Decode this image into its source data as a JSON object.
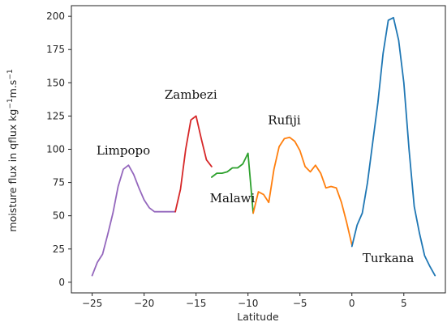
{
  "chart_data": {
    "type": "line",
    "xlabel": "Latitude",
    "ylabel_parts": [
      "moisture flux in  qflux kg",
      "−1",
      "m.s",
      "−1"
    ],
    "xlim": [
      -27,
      9
    ],
    "ylim": [
      -8,
      208
    ],
    "x_ticks": [
      -25,
      -20,
      -15,
      -10,
      -5,
      0,
      5
    ],
    "y_ticks": [
      0,
      25,
      50,
      75,
      100,
      125,
      150,
      175,
      200
    ],
    "grid": false,
    "legend": "none",
    "series": [
      {
        "label": "Limpopo",
        "color": "#9467bd",
        "x": [
          -25.0,
          -24.5,
          -24.0,
          -23.5,
          -23.0,
          -22.5,
          -22.0,
          -21.5,
          -21.0,
          -20.5,
          -20.0,
          -19.5,
          -19.0,
          -18.5,
          -18.0,
          -17.5,
          -17.0
        ],
        "y": [
          5,
          15,
          21,
          36,
          52,
          72,
          85,
          88,
          81,
          71,
          62,
          56,
          53,
          53,
          53,
          53,
          53
        ]
      },
      {
        "label": "Zambezi",
        "color": "#d62728",
        "x": [
          -17.0,
          -16.5,
          -16.0,
          -15.5,
          -15.0,
          -14.5,
          -14.0,
          -13.5
        ],
        "y": [
          53,
          70,
          100,
          122,
          125,
          108,
          92,
          87
        ]
      },
      {
        "label": "Malawi",
        "color": "#2ca02c",
        "x": [
          -13.5,
          -13.0,
          -12.5,
          -12.0,
          -11.5,
          -11.0,
          -10.5,
          -10.0,
          -9.5
        ],
        "y": [
          79,
          82,
          82,
          83,
          86,
          86,
          89,
          97,
          52
        ]
      },
      {
        "label": "Rufiji",
        "color": "#ff7f0e",
        "x": [
          -9.5,
          -9.0,
          -8.5,
          -8.0,
          -7.5,
          -7.0,
          -6.5,
          -6.0,
          -5.5,
          -5.0,
          -4.5,
          -4.0,
          -3.5,
          -3.0,
          -2.5,
          -2.0,
          -1.5,
          -1.0,
          -0.5,
          0.0
        ],
        "y": [
          52,
          68,
          66,
          60,
          85,
          102,
          108,
          109,
          106,
          99,
          87,
          83,
          88,
          82,
          71,
          72,
          71,
          60,
          45,
          28
        ]
      },
      {
        "label": "Turkana",
        "color": "#1f77b4",
        "x": [
          0.0,
          0.5,
          1.0,
          1.5,
          2.0,
          2.5,
          3.0,
          3.5,
          4.0,
          4.5,
          5.0,
          5.5,
          6.0,
          6.5,
          7.0,
          7.5,
          8.0
        ],
        "y": [
          27,
          43,
          52,
          75,
          105,
          135,
          172,
          197,
          199,
          182,
          150,
          100,
          57,
          37,
          20,
          12,
          5
        ]
      }
    ]
  }
}
